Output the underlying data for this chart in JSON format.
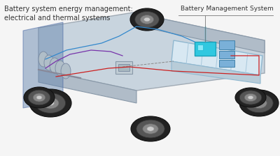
{
  "title_left": "Battery system energy management:\nelectrical and thermal systems",
  "title_right": "Battery Management System",
  "bg_color": "#f5f5f5",
  "chassis_fill": "#c8d4de",
  "chassis_edge": "#a0aab4",
  "chassis_side_fill": "#b0bcc8",
  "chassis_side_edge": "#8898a8",
  "battery_fill": "#d8e8f2",
  "battery_edge": "#90b8d0",
  "battery_stripe": "#a8c8dc",
  "bms_fill": "#30c8e0",
  "bms_edge": "#18a0b8",
  "blue_box_fill": "#7ab0d8",
  "blue_box_edge": "#4080a8",
  "motor_rail_fill": "#6888b0",
  "motor_rail_edge": "#4060a0",
  "wheel_dark": "#222222",
  "wheel_mid": "#555555",
  "wheel_rim": "#888888",
  "line_red": "#cc2020",
  "line_blue": "#3388cc",
  "line_purple": "#7733aa",
  "line_cyan": "#22aacc",
  "annot_line": "#777777",
  "text_color": "#333333",
  "title_fontsize": 7.0,
  "annot_fontsize": 6.5
}
